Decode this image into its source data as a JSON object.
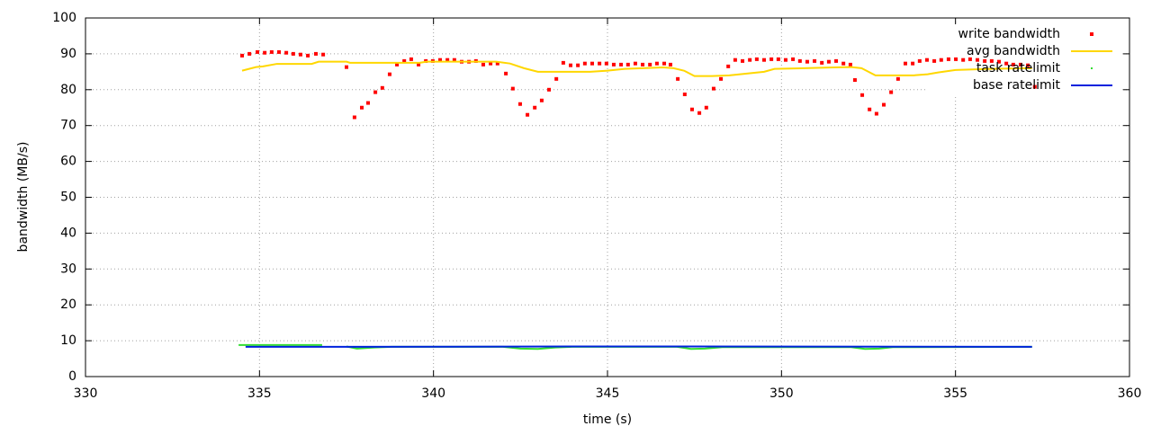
{
  "chart_data": {
    "type": "line",
    "x_label": "time (s)",
    "y_label": "bandwidth (MB/s)",
    "xlim": [
      330,
      360
    ],
    "xticks": [
      330,
      335,
      340,
      345,
      350,
      355,
      360
    ],
    "ylim": [
      0,
      100
    ],
    "yticks": [
      0,
      10,
      20,
      30,
      40,
      50,
      60,
      70,
      80,
      90,
      100
    ],
    "grid": true,
    "legend": "top-right",
    "series": [
      {
        "name": "write bandwidth",
        "style": "points",
        "color": "#ff0000",
        "x": [
          334.5,
          334.71,
          334.94,
          335.15,
          335.35,
          335.56,
          335.77,
          335.97,
          336.18,
          336.39,
          336.62,
          336.83,
          337.5,
          337.73,
          337.94,
          338.12,
          338.33,
          338.53,
          338.74,
          338.95,
          339.16,
          339.36,
          339.57,
          339.78,
          339.98,
          340.19,
          340.4,
          340.6,
          340.81,
          341.02,
          341.22,
          341.43,
          341.64,
          341.84,
          342.08,
          342.28,
          342.49,
          342.7,
          342.91,
          343.11,
          343.32,
          343.53,
          343.73,
          343.94,
          344.15,
          344.35,
          344.56,
          344.77,
          344.97,
          345.18,
          345.39,
          345.59,
          345.8,
          346.01,
          346.22,
          346.42,
          346.63,
          346.81,
          347.02,
          347.22,
          347.43,
          347.64,
          347.84,
          348.05,
          348.26,
          348.47,
          348.67,
          348.88,
          349.09,
          349.29,
          349.5,
          349.71,
          349.91,
          350.12,
          350.33,
          350.53,
          350.74,
          350.95,
          351.16,
          351.36,
          351.57,
          351.78,
          351.98,
          352.11,
          352.32,
          352.53,
          352.73,
          352.94,
          353.15,
          353.35,
          353.56,
          353.77,
          353.97,
          354.18,
          354.39,
          354.59,
          354.8,
          355.01,
          355.22,
          355.42,
          355.63,
          355.84,
          356.04,
          356.25,
          356.46,
          356.66,
          356.87,
          357.08,
          357.28
        ],
        "values": [
          89.5,
          90,
          90.5,
          90.3,
          90.5,
          90.5,
          90.3,
          90,
          89.8,
          89.5,
          90,
          89.8,
          86.3,
          72.3,
          75,
          76.3,
          79.3,
          80.5,
          84.3,
          87,
          88,
          88.5,
          87,
          88,
          88,
          88.3,
          88.3,
          88.3,
          87.8,
          87.8,
          88,
          87,
          87.3,
          87.3,
          84.5,
          80.3,
          76,
          73,
          75,
          77,
          80,
          83,
          87.5,
          86.8,
          86.8,
          87.3,
          87.3,
          87.3,
          87.3,
          87,
          87,
          87,
          87.3,
          87,
          87,
          87.3,
          87.3,
          87,
          83,
          78.7,
          74.5,
          73.5,
          75,
          80.3,
          83,
          86.5,
          88.3,
          88,
          88.3,
          88.5,
          88.3,
          88.5,
          88.5,
          88.3,
          88.5,
          88,
          87.8,
          88,
          87.5,
          87.8,
          88,
          87.3,
          87,
          82.7,
          78.5,
          74.5,
          73.3,
          75.8,
          79.3,
          83,
          87.3,
          87.3,
          88,
          88.3,
          88,
          88.3,
          88.5,
          88.5,
          88.3,
          88.5,
          88.3,
          88,
          88,
          87.8,
          87.3,
          87,
          87,
          86.8,
          80.8
        ]
      },
      {
        "name": "avg bandwidth",
        "style": "line",
        "color": "#ffd700",
        "x": [
          334.5,
          334.9,
          335.1,
          335.5,
          336.5,
          336.7,
          337.5,
          337.6,
          339.6,
          339.8,
          341.8,
          342.2,
          342.6,
          343,
          344.5,
          345,
          345.5,
          346.6,
          346.9,
          347.2,
          347.5,
          348,
          348.5,
          349,
          349.5,
          349.8,
          351.5,
          352,
          352.3,
          352.7,
          353.8,
          354.2,
          354.5,
          355,
          356,
          357.2
        ],
        "values": [
          85.3,
          86.3,
          86.5,
          87.2,
          87.2,
          87.8,
          87.8,
          87.5,
          87.5,
          87.8,
          87.8,
          87.3,
          86,
          85,
          85,
          85.3,
          85.8,
          86.2,
          86,
          85.3,
          83.8,
          83.8,
          84,
          84.5,
          85,
          85.8,
          86.2,
          86.3,
          86,
          84,
          84,
          84.3,
          84.8,
          85.5,
          85.8,
          86
        ]
      },
      {
        "name": "task ratelimit",
        "style": "line",
        "color": "#33dd33",
        "x": [
          334.4,
          336.8,
          337.2,
          337.5,
          337.8,
          338.3,
          338.8,
          342,
          342.5,
          343,
          343.5,
          344,
          347,
          347.4,
          347.8,
          348.3,
          352,
          352.4,
          352.8,
          353.2,
          357.2
        ],
        "values": [
          8.8,
          8.8,
          null,
          8.4,
          7.8,
          8.1,
          8.3,
          8.3,
          7.8,
          7.7,
          8.1,
          8.3,
          8.3,
          7.7,
          7.8,
          8.2,
          8.2,
          7.7,
          7.8,
          8.2,
          8.3
        ]
      },
      {
        "name": "base ratelimit",
        "style": "line",
        "color": "#0022dd",
        "x": [
          334.6,
          336.8,
          337.5,
          345,
          357.2
        ],
        "values": [
          8.3,
          8.3,
          8.3,
          8.4,
          8.3
        ]
      }
    ]
  }
}
